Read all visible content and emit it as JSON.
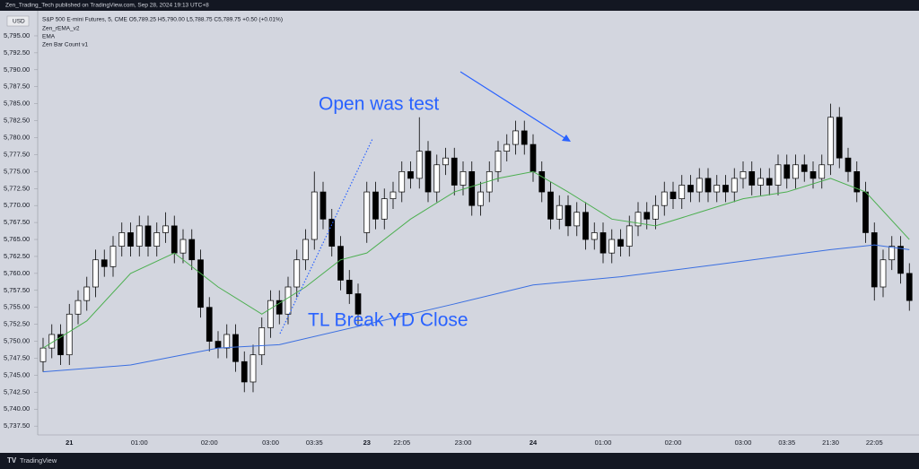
{
  "header": {
    "published": "Zen_Trading_Tech published on TradingView.com, Sep 28, 2024 19:13 UTC+8",
    "currency": "USD",
    "symbol": "S&P 500 E-mini Futures, 5, CME  O5,789.25 H5,790.00 L5,788.75 C5,789.75 +0.50 (+0.01%)",
    "indicators": [
      "Zen_rEMA_v2",
      "EMA",
      "Zen Bar Count v1"
    ],
    "footer": "TradingView"
  },
  "chart_data": {
    "type": "candlestick",
    "categories": [
      null,
      null,
      null,
      "21",
      null,
      null,
      null,
      null,
      null,
      null,
      null,
      "01:00",
      null,
      null,
      null,
      null,
      null,
      null,
      null,
      "02:00",
      null,
      null,
      null,
      null,
      null,
      null,
      "03:00",
      null,
      null,
      null,
      null,
      "03:35",
      null,
      null,
      null,
      null,
      null,
      "23",
      null,
      null,
      null,
      "22:05",
      null,
      null,
      null,
      null,
      null,
      null,
      "23:00",
      null,
      null,
      null,
      null,
      null,
      null,
      null,
      "24",
      null,
      null,
      null,
      null,
      null,
      null,
      null,
      "01:00",
      null,
      null,
      null,
      null,
      null,
      null,
      null,
      "02:00",
      null,
      null,
      null,
      null,
      null,
      null,
      null,
      "03:00",
      null,
      null,
      null,
      null,
      "03:35",
      null,
      null,
      null,
      null,
      "21:30",
      null,
      null,
      null,
      null,
      "22:05",
      null,
      null,
      null,
      null
    ],
    "open": [
      5747,
      5749,
      5751,
      5748,
      5754,
      5756,
      5758,
      5762,
      5761,
      5764,
      5766,
      5764,
      5767,
      5764,
      5766,
      5767,
      5763,
      5765,
      5762,
      5755,
      5750,
      5749,
      5751,
      5747,
      5744,
      5748,
      5752,
      5756,
      5754,
      5758,
      5762,
      5765,
      5772,
      5768,
      5764,
      5759,
      5757,
      5766,
      5772,
      5768,
      5771,
      5772,
      5775,
      5774,
      5778,
      5772,
      5776,
      5777,
      5773,
      5775,
      5770,
      5772,
      5775,
      5778,
      5779,
      5781,
      5779,
      5775,
      5772,
      5768,
      5770,
      5767,
      5769,
      5765,
      5766,
      5763,
      5765,
      5764,
      5767,
      5769,
      5768,
      5770,
      5772,
      5771,
      5773,
      5772,
      5774,
      5772,
      5773,
      5772,
      5774,
      5775,
      5773,
      5774,
      5773,
      5776,
      5774,
      5776,
      5775,
      5774,
      5776,
      5783,
      5777,
      5775,
      5772,
      5766,
      5758,
      5762,
      5764,
      5760
    ],
    "high": [
      5750.5,
      5752.5,
      5752.5,
      5755.5,
      5757.5,
      5759.5,
      5763.5,
      5763.5,
      5765.5,
      5767.5,
      5767.5,
      5768.5,
      5768.5,
      5767.5,
      5769,
      5768.5,
      5766.5,
      5766.5,
      5763.5,
      5756.5,
      5751.5,
      5752.5,
      5752.5,
      5748.5,
      5749.5,
      5753.5,
      5757.5,
      5757.5,
      5759.5,
      5763.5,
      5766.5,
      5775,
      5773.5,
      5769.5,
      5765.5,
      5760.5,
      5758.5,
      5773.5,
      5773.5,
      5772.5,
      5773.5,
      5776.5,
      5776.5,
      5783,
      5779.5,
      5777.5,
      5778.5,
      5778.5,
      5776.5,
      5776.5,
      5773.5,
      5776.5,
      5779.5,
      5780.5,
      5782.5,
      5782.5,
      5780.5,
      5776.5,
      5773.5,
      5771.5,
      5771.5,
      5770.5,
      5770.5,
      5767.5,
      5767.5,
      5766.5,
      5766.5,
      5768.5,
      5770.5,
      5770.5,
      5771.5,
      5773.5,
      5773.5,
      5774.5,
      5774.5,
      5775.5,
      5775.5,
      5774.5,
      5774.5,
      5775.5,
      5776.5,
      5776.5,
      5775.5,
      5775.5,
      5777.5,
      5777.5,
      5777.5,
      5777.5,
      5776.5,
      5777.5,
      5785,
      5784.5,
      5778.5,
      5776.5,
      5773.5,
      5767.5,
      5763.5,
      5765.5,
      5765.5,
      5761.5
    ],
    "low": [
      5745.5,
      5747.5,
      5746.5,
      5746.5,
      5752.5,
      5754.5,
      5756.5,
      5759.5,
      5759.5,
      5762.5,
      5762.5,
      5762.5,
      5762.5,
      5762.5,
      5764.5,
      5761.5,
      5761.5,
      5760.5,
      5753.5,
      5748.5,
      5747.5,
      5747.5,
      5745.5,
      5742.5,
      5742.5,
      5746.5,
      5750.5,
      5752.5,
      5752.5,
      5756.5,
      5760.5,
      5763.5,
      5766.5,
      5762.5,
      5757.5,
      5755.5,
      5752.5,
      5764.5,
      5766.5,
      5766.5,
      5769.5,
      5770.5,
      5772.5,
      5772.5,
      5770.5,
      5770.5,
      5774.5,
      5771.5,
      5771.5,
      5768.5,
      5768.5,
      5770.5,
      5773.5,
      5776.5,
      5777.5,
      5777.5,
      5773.5,
      5770.5,
      5766.5,
      5766.5,
      5765.5,
      5765.5,
      5763.5,
      5763.5,
      5761.5,
      5761.5,
      5762.5,
      5762.5,
      5765.5,
      5766.5,
      5766.5,
      5768.5,
      5769.5,
      5769.5,
      5770.5,
      5770.5,
      5770.5,
      5770.5,
      5770.5,
      5770.5,
      5772.5,
      5771.5,
      5771.5,
      5771.5,
      5771.5,
      5772.5,
      5772.5,
      5773.5,
      5772.5,
      5772.5,
      5774.5,
      5775.5,
      5773.5,
      5770.5,
      5764.5,
      5756,
      5756.5,
      5760.5,
      5758.5,
      5754.5
    ],
    "close": [
      5749,
      5751,
      5748,
      5754,
      5756,
      5758,
      5762,
      5761,
      5764,
      5766,
      5764,
      5767,
      5764,
      5766,
      5767,
      5763,
      5765,
      5762,
      5755,
      5750,
      5749,
      5751,
      5747,
      5744,
      5748,
      5752,
      5756,
      5754,
      5758,
      5762,
      5765,
      5772,
      5768,
      5764,
      5759,
      5757,
      5754,
      5772,
      5768,
      5771,
      5772,
      5775,
      5774,
      5778,
      5772,
      5776,
      5777,
      5773,
      5775,
      5770,
      5772,
      5775,
      5778,
      5779,
      5781,
      5779,
      5775,
      5772,
      5768,
      5770,
      5767,
      5769,
      5765,
      5766,
      5763,
      5765,
      5764,
      5767,
      5769,
      5768,
      5770,
      5772,
      5771,
      5773,
      5772,
      5774,
      5772,
      5773,
      5772,
      5774,
      5775,
      5773,
      5774,
      5773,
      5776,
      5774,
      5776,
      5775,
      5774,
      5776,
      5783,
      5777,
      5775,
      5772,
      5766,
      5758,
      5762,
      5764,
      5760,
      5756
    ],
    "up_color": "#ffffff",
    "down_color": "#000000",
    "overlays": [
      {
        "name": "EMA",
        "color": "#3b6fe0",
        "x": [
          0,
          10,
          20,
          27,
          37,
          47,
          56,
          66,
          77,
          90,
          95,
          99
        ],
        "values": [
          5745.5,
          5746.5,
          5749,
          5749.5,
          5752.5,
          5755.5,
          5758.3,
          5759.5,
          5761.3,
          5763.5,
          5764.2,
          5763.5
        ]
      },
      {
        "name": "Zen_rEMA_v2",
        "color": "#4caf50",
        "x": [
          0,
          5,
          10,
          15,
          20,
          25,
          30,
          34,
          37,
          42,
          47,
          52,
          56,
          60,
          65,
          70,
          75,
          80,
          85,
          90,
          94,
          99
        ],
        "values": [
          5749,
          5753,
          5760,
          5763,
          5758,
          5754,
          5758,
          5762,
          5763,
          5768,
          5772,
          5774,
          5775,
          5772,
          5768,
          5767,
          5769,
          5771,
          5772,
          5774,
          5772,
          5765
        ]
      }
    ],
    "ylim": [
      5736.2,
      5798.3
    ],
    "yticks": [
      {
        "value": 5737.5,
        "label": "5,737.50"
      },
      {
        "value": 5740,
        "label": "5,740.00"
      },
      {
        "value": 5742.5,
        "label": "5,742.50"
      },
      {
        "value": 5745,
        "label": "5,745.00"
      },
      {
        "value": 5747.5,
        "label": "5,747.50"
      },
      {
        "value": 5750,
        "label": "5,750.00"
      },
      {
        "value": 5752.5,
        "label": "5,752.50"
      },
      {
        "value": 5755,
        "label": "5,755.00"
      },
      {
        "value": 5757.5,
        "label": "5,757.50"
      },
      {
        "value": 5760,
        "label": "5,760.00"
      },
      {
        "value": 5762.5,
        "label": "5,762.50"
      },
      {
        "value": 5765,
        "label": "5,765.00"
      },
      {
        "value": 5767.5,
        "label": "5,767.50"
      },
      {
        "value": 5770,
        "label": "5,770.00"
      },
      {
        "value": 5772.5,
        "label": "5,772.50"
      },
      {
        "value": 5775,
        "label": "5,775.00"
      },
      {
        "value": 5777.5,
        "label": "5,777.50"
      },
      {
        "value": 5780,
        "label": "5,780.00"
      },
      {
        "value": 5782.5,
        "label": "5,782.50"
      },
      {
        "value": 5785,
        "label": "5,785.00"
      },
      {
        "value": 5787.5,
        "label": "5,787.50"
      },
      {
        "value": 5790,
        "label": "5,790.00"
      },
      {
        "value": 5792.5,
        "label": "5,792.50"
      },
      {
        "value": 5795,
        "label": "5,795.00"
      }
    ],
    "annotations": [
      "Open was test",
      "TL Break YD Close"
    ]
  }
}
